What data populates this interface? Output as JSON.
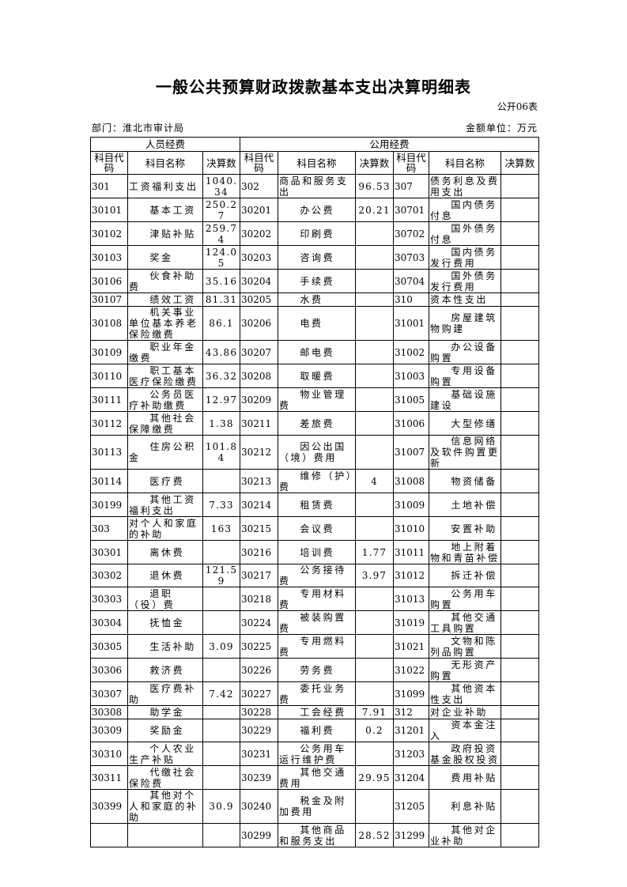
{
  "title": "一般公共预算财政拨款基本支出决算明细表",
  "form_no": "公开06表",
  "department": "部门：淮北市审计局",
  "unit": "金额单位：万元",
  "table": {
    "group_headers": [
      "人员经费",
      "公用经费"
    ],
    "headers": [
      "科目代码",
      "科目名称",
      "决算数",
      "科目代码",
      "科目名称",
      "决算数",
      "科目代码",
      "科目名称",
      "决算数"
    ],
    "rows": [
      [
        "301",
        "工资福利支出",
        "1040.34",
        "302",
        "商品和服务支出",
        "96.53",
        "307",
        "债务利息及费用支出",
        ""
      ],
      [
        "30101",
        "基本工资",
        "250.27",
        "30201",
        "办公费",
        "20.21",
        "30701",
        "国内债务付息",
        ""
      ],
      [
        "30102",
        "津贴补贴",
        "259.74",
        "30202",
        "印刷费",
        "",
        "30702",
        "国外债务付息",
        ""
      ],
      [
        "30103",
        "奖金",
        "124.05",
        "30203",
        "咨询费",
        "",
        "30703",
        "国内债务发行费用",
        ""
      ],
      [
        "30106",
        "伙食补助费",
        "35.16",
        "30204",
        "手续费",
        "",
        "30704",
        "国外债务发行费用",
        ""
      ],
      [
        "30107",
        "绩效工资",
        "81.31",
        "30205",
        "水费",
        "",
        "310",
        "资本性支出",
        ""
      ],
      [
        "30108",
        "机关事业单位基本养老保险缴费",
        "86.1",
        "30206",
        "电费",
        "",
        "31001",
        "房屋建筑物购建",
        ""
      ],
      [
        "30109",
        "职业年金缴费",
        "43.86",
        "30207",
        "邮电费",
        "",
        "31002",
        "办公设备购置",
        ""
      ],
      [
        "30110",
        "职工基本医疗保险缴费",
        "36.32",
        "30208",
        "取暖费",
        "",
        "31003",
        "专用设备购置",
        ""
      ],
      [
        "30111",
        "公务员医疗补助缴费",
        "12.97",
        "30209",
        "物业管理费",
        "",
        "31005",
        "基础设施建设",
        ""
      ],
      [
        "30112",
        "其他社会保障缴费",
        "1.38",
        "30211",
        "差旅费",
        "",
        "31006",
        "大型修缮",
        ""
      ],
      [
        "30113",
        "住房公积金",
        "101.84",
        "30212",
        "因公出国（境）费用",
        "",
        "31007",
        "信息网络及软件购置更新",
        ""
      ],
      [
        "30114",
        "医疗费",
        "",
        "30213",
        "维修（护）费",
        "4",
        "31008",
        "物资储备",
        ""
      ],
      [
        "30199",
        "其他工资福利支出",
        "7.33",
        "30214",
        "租赁费",
        "",
        "31009",
        "土地补偿",
        ""
      ],
      [
        "303",
        "对个人和家庭的补助",
        "163",
        "30215",
        "会议费",
        "",
        "31010",
        "安置补助",
        ""
      ],
      [
        "30301",
        "离休费",
        "",
        "30216",
        "培训费",
        "1.77",
        "31011",
        "地上附着物和青苗补偿",
        ""
      ],
      [
        "30302",
        "退休费",
        "121.59",
        "30217",
        "公务接待费",
        "3.97",
        "31012",
        "拆迁补偿",
        ""
      ],
      [
        "30303",
        "退职（役）费",
        "",
        "30218",
        "专用材料费",
        "",
        "31013",
        "公务用车购置",
        ""
      ],
      [
        "30304",
        "抚恤金",
        "",
        "30224",
        "被装购置费",
        "",
        "31019",
        "其他交通工具购置",
        ""
      ],
      [
        "30305",
        "生活补助",
        "3.09",
        "30225",
        "专用燃料费",
        "",
        "31021",
        "文物和陈列品购置",
        ""
      ],
      [
        "30306",
        "救济费",
        "",
        "30226",
        "劳务费",
        "",
        "31022",
        "无形资产购置",
        ""
      ],
      [
        "30307",
        "医疗费补助",
        "7.42",
        "30227",
        "委托业务费",
        "",
        "31099",
        "其他资本性支出",
        ""
      ],
      [
        "30308",
        "助学金",
        "",
        "30228",
        "工会经费",
        "7.91",
        "312",
        "对企业补助",
        ""
      ],
      [
        "30309",
        "奖励金",
        "",
        "30229",
        "福利费",
        "0.2",
        "31201",
        "资本金注入",
        ""
      ],
      [
        "30310",
        "个人农业生产补贴",
        "",
        "30231",
        "公务用车运行维护费",
        "",
        "31203",
        "政府投资基金股权投资",
        ""
      ],
      [
        "30311",
        "代缴社会保险费",
        "",
        "30239",
        "其他交通费用",
        "29.95",
        "31204",
        "费用补贴",
        ""
      ],
      [
        "30399",
        "其他对个人和家庭的补助",
        "30.9",
        "30240",
        "税金及附加费用",
        "",
        "31205",
        "利息补贴",
        ""
      ],
      [
        "",
        "",
        "",
        "30299",
        "其他商品和服务支出",
        "28.52",
        "31299",
        "其他对企业补助",
        ""
      ]
    ]
  }
}
